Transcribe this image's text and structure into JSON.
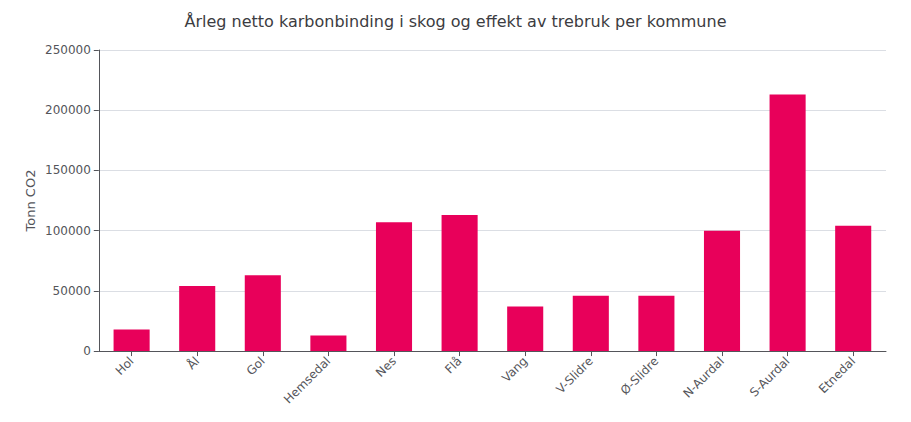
{
  "chart_data": {
    "type": "bar",
    "title": "Årleg netto karbonbinding i skog og effekt av trebruk per kommune",
    "ylabel": "Tonn CO2",
    "categories": [
      "Hol",
      "Ål",
      "Gol",
      "Hemsedal",
      "Nes",
      "Flå",
      "Vang",
      "V-Slidre",
      "Ø-Slidre",
      "N-Aurdal",
      "S-Aurdal",
      "Etnedal"
    ],
    "values": [
      18000,
      54000,
      63000,
      13000,
      107000,
      113000,
      37000,
      46000,
      46000,
      100000,
      213000,
      104000
    ],
    "color": "#E8005A",
    "ylim": [
      0,
      250000
    ],
    "yticks": [
      0,
      50000,
      100000,
      150000,
      200000,
      250000
    ],
    "grid": true
  }
}
